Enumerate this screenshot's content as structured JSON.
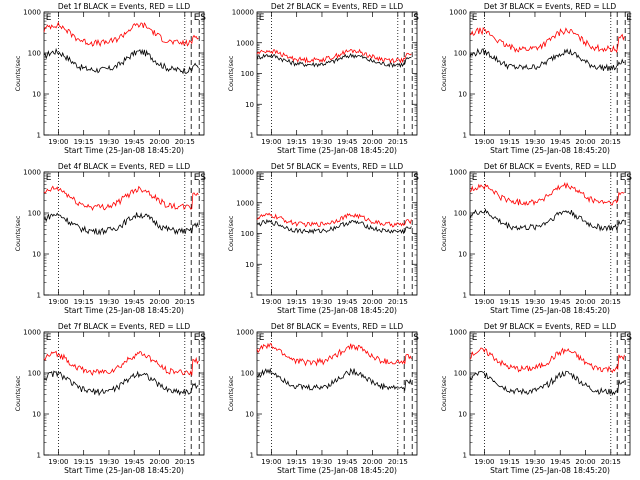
{
  "chart_data": [
    {
      "type": "line",
      "title": "Det 1f BLACK = Events, RED = LLD",
      "xlabel": "Start Time (25-Jan-08 18:45:20)",
      "ylabel": "Counts/sec",
      "ylim": [
        1,
        1000
      ],
      "yscale": "log",
      "x_ticks": [
        "19:00",
        "19:15",
        "19:30",
        "19:45",
        "20:00",
        "20:15"
      ],
      "y_ticks": [
        "1",
        "10",
        "100",
        "1000"
      ],
      "markers": [
        "E",
        "E",
        "S"
      ],
      "series": [
        {
          "name": "Events",
          "color": "#000000",
          "base": 55,
          "amp": 0.45,
          "end": 50
        },
        {
          "name": "LLD",
          "color": "#ff0000",
          "base": 250,
          "amp": 0.45,
          "end": 260
        }
      ]
    },
    {
      "type": "line",
      "title": "Det 2f BLACK = Events, RED = LLD",
      "xlabel": "Start Time (25-Jan-08 18:45:20)",
      "ylabel": "Counts/sec",
      "ylim": [
        1,
        10000
      ],
      "yscale": "log",
      "x_ticks": [
        "19:00",
        "19:15",
        "19:30",
        "19:45",
        "20:00",
        "20:15"
      ],
      "y_ticks": [
        "1",
        "10",
        "100",
        "1000",
        "10000"
      ],
      "markers": [
        "E",
        "S"
      ],
      "series": [
        {
          "name": "Events",
          "color": "#000000",
          "base": 250,
          "amp": 0.3,
          "end": 300
        },
        {
          "name": "LLD",
          "color": "#ff0000",
          "base": 350,
          "amp": 0.3,
          "end": 400
        }
      ]
    },
    {
      "type": "line",
      "title": "Det 3f BLACK = Events, RED = LLD",
      "xlabel": "Start Time (25-Jan-08 18:45:20)",
      "ylabel": "Counts/sec",
      "ylim": [
        1,
        1000
      ],
      "yscale": "log",
      "x_ticks": [
        "19:00",
        "19:15",
        "19:30",
        "19:45",
        "20:00",
        "20:15"
      ],
      "y_ticks": [
        "1",
        "10",
        "100",
        "1000"
      ],
      "markers": [
        "E",
        "E"
      ],
      "series": [
        {
          "name": "Events",
          "color": "#000000",
          "base": 60,
          "amp": 0.4,
          "end": 60
        },
        {
          "name": "LLD",
          "color": "#ff0000",
          "base": 180,
          "amp": 0.45,
          "end": 250
        }
      ]
    },
    {
      "type": "line",
      "title": "Det 4f BLACK = Events, RED = LLD",
      "xlabel": "Start Time (25-Jan-08 18:45:20)",
      "ylabel": "Counts/sec",
      "ylim": [
        1,
        1000
      ],
      "yscale": "log",
      "x_ticks": [
        "19:00",
        "19:15",
        "19:30",
        "19:45",
        "20:00",
        "20:15"
      ],
      "y_ticks": [
        "1",
        "10",
        "100",
        "1000"
      ],
      "markers": [
        "E",
        "E",
        "S"
      ],
      "series": [
        {
          "name": "Events",
          "color": "#000000",
          "base": 50,
          "amp": 0.4,
          "end": 50
        },
        {
          "name": "LLD",
          "color": "#ff0000",
          "base": 200,
          "amp": 0.45,
          "end": 300
        }
      ]
    },
    {
      "type": "line",
      "title": "Det 5f BLACK = Events, RED = LLD",
      "xlabel": "Start Time (25-Jan-08 18:45:20)",
      "ylabel": "Counts/sec",
      "ylim": [
        1,
        10000
      ],
      "yscale": "log",
      "x_ticks": [
        "19:00",
        "19:15",
        "19:30",
        "19:45",
        "20:00",
        "20:15"
      ],
      "y_ticks": [
        "1",
        "10",
        "100",
        "1000",
        "10000"
      ],
      "markers": [
        "E",
        "S"
      ],
      "series": [
        {
          "name": "Events",
          "color": "#000000",
          "base": 150,
          "amp": 0.3,
          "end": 150
        },
        {
          "name": "LLD",
          "color": "#ff0000",
          "base": 250,
          "amp": 0.3,
          "end": 250
        }
      ]
    },
    {
      "type": "line",
      "title": "Det 6f BLACK = Events, RED = LLD",
      "xlabel": "Start Time (25-Jan-08 18:45:20)",
      "ylabel": "Counts/sec",
      "ylim": [
        1,
        1000
      ],
      "yscale": "log",
      "x_ticks": [
        "19:00",
        "19:15",
        "19:30",
        "19:45",
        "20:00",
        "20:15"
      ],
      "y_ticks": [
        "1",
        "10",
        "100",
        "1000"
      ],
      "markers": [
        "E",
        "E",
        "S"
      ],
      "series": [
        {
          "name": "Events",
          "color": "#000000",
          "base": 60,
          "amp": 0.4,
          "end": 60
        },
        {
          "name": "LLD",
          "color": "#ff0000",
          "base": 250,
          "amp": 0.4,
          "end": 300
        }
      ]
    },
    {
      "type": "line",
      "title": "Det 7f BLACK = Events, RED = LLD",
      "xlabel": "Start Time (25-Jan-08 18:45:20)",
      "ylabel": "Counts/sec",
      "ylim": [
        1,
        1000
      ],
      "yscale": "log",
      "x_ticks": [
        "19:00",
        "19:15",
        "19:30",
        "19:45",
        "20:00",
        "20:15"
      ],
      "y_ticks": [
        "1",
        "10",
        "100",
        "1000"
      ],
      "markers": [
        "E",
        "E",
        "S"
      ],
      "series": [
        {
          "name": "Events",
          "color": "#000000",
          "base": 50,
          "amp": 0.45,
          "end": 50
        },
        {
          "name": "LLD",
          "color": "#ff0000",
          "base": 150,
          "amp": 0.45,
          "end": 200
        }
      ]
    },
    {
      "type": "line",
      "title": "Det 8f BLACK = Events, RED = LLD",
      "xlabel": "Start Time (25-Jan-08 18:45:20)",
      "ylabel": "Counts/sec",
      "ylim": [
        1,
        1000
      ],
      "yscale": "log",
      "x_ticks": [
        "19:00",
        "19:15",
        "19:30",
        "19:45",
        "20:00",
        "20:15"
      ],
      "y_ticks": [
        "1",
        "10",
        "100",
        "1000"
      ],
      "markers": [
        "E",
        "S"
      ],
      "series": [
        {
          "name": "Events",
          "color": "#000000",
          "base": 60,
          "amp": 0.4,
          "end": 60
        },
        {
          "name": "LLD",
          "color": "#ff0000",
          "base": 250,
          "amp": 0.4,
          "end": 250
        }
      ]
    },
    {
      "type": "line",
      "title": "Det 9f BLACK = Events, RED = LLD",
      "xlabel": "Start Time (25-Jan-08 18:45:20)",
      "ylabel": "Counts/sec",
      "ylim": [
        1,
        1000
      ],
      "yscale": "log",
      "x_ticks": [
        "19:00",
        "19:15",
        "19:30",
        "19:45",
        "20:00",
        "20:15"
      ],
      "y_ticks": [
        "1",
        "10",
        "100",
        "1000"
      ],
      "markers": [
        "E",
        "E",
        "S"
      ],
      "series": [
        {
          "name": "Events",
          "color": "#000000",
          "base": 50,
          "amp": 0.45,
          "end": 60
        },
        {
          "name": "LLD",
          "color": "#ff0000",
          "base": 180,
          "amp": 0.45,
          "end": 250
        }
      ]
    }
  ]
}
